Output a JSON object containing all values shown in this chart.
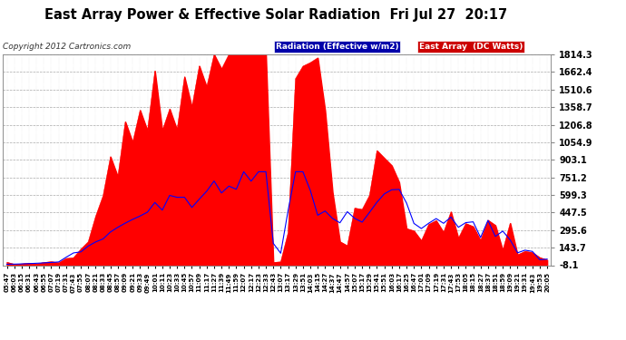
{
  "title": "East Array Power & Effective Solar Radiation  Fri Jul 27  20:17",
  "copyright": "Copyright 2012 Cartronics.com",
  "legend_radiation": "Radiation (Effective w/m2)",
  "legend_east": "East Array  (DC Watts)",
  "yticks": [
    1814.3,
    1662.4,
    1510.6,
    1358.7,
    1206.8,
    1054.9,
    903.1,
    751.2,
    599.3,
    447.5,
    295.6,
    143.7,
    -8.1
  ],
  "ymin": -8.1,
  "ymax": 1814.3,
  "bg_color": "#ffffff",
  "plot_bg_color": "#ffffff",
  "grid_color": "#aaaaaa",
  "title_color": "#000000",
  "tick_color": "#000000",
  "radiation_color": "#0000ff",
  "east_array_color": "#ff0000",
  "east_array_fill": "#ff0000",
  "xtick_labels": [
    "05:47",
    "06:03",
    "06:15",
    "06:31",
    "06:43",
    "06:55",
    "07:07",
    "07:19",
    "07:31",
    "07:43",
    "07:55",
    "08:07",
    "08:21",
    "08:33",
    "08:45",
    "08:57",
    "09:09",
    "09:21",
    "09:33",
    "09:49",
    "10:01",
    "10:11",
    "10:23",
    "10:33",
    "10:45",
    "10:57",
    "11:09",
    "11:17",
    "11:27",
    "11:39",
    "11:49",
    "11:59",
    "12:07",
    "12:17",
    "12:23",
    "12:33",
    "12:43",
    "13:07",
    "13:17",
    "13:29",
    "13:51",
    "14:03",
    "14:15",
    "14:27",
    "14:37",
    "14:47",
    "14:57",
    "15:07",
    "15:17",
    "15:29",
    "15:41",
    "15:51",
    "16:03",
    "16:17",
    "16:25",
    "16:47",
    "17:01",
    "17:09",
    "17:19",
    "17:31",
    "17:43",
    "17:53",
    "18:05",
    "18:15",
    "18:27",
    "18:37",
    "18:51",
    "18:59",
    "19:09",
    "19:21",
    "19:31",
    "19:43",
    "19:53",
    "20:05"
  ]
}
